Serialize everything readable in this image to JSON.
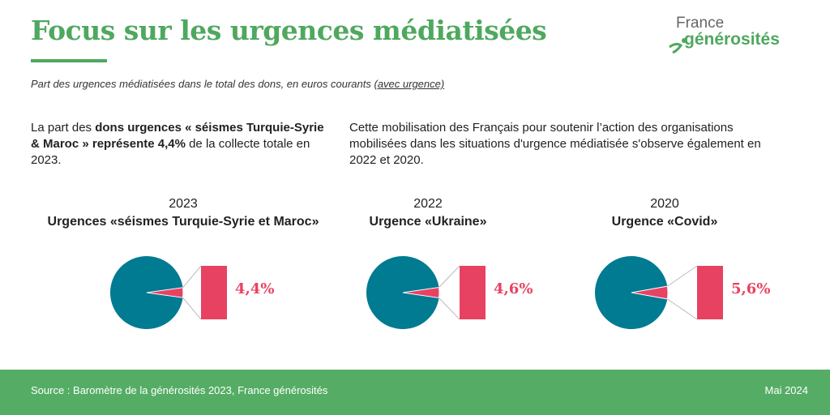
{
  "title": "Focus sur les urgences médiatisées",
  "logo": {
    "line1": "France",
    "line2": "générosités"
  },
  "subtitle": {
    "text": "Part des urgences médiatisées dans le total des dons, en euros courants ",
    "link": "(avec urgence)"
  },
  "para1": {
    "a": "La part des ",
    "b": "dons urgences « séismes Turquie-Syrie & Maroc » représente 4,4%",
    "c": " de la collecte totale en 2023."
  },
  "para2": "Cette mobilisation des Français pour soutenir l’action des organisations mobilisées dans les situations d'urgence médiatisée s'observe également en 2022 et 2020.",
  "colors": {
    "pie_main": "#007b92",
    "pie_slice": "#e84262",
    "title_green": "#4fa85f",
    "footer": "#55ad65"
  },
  "chart_data": [
    {
      "type": "pie",
      "title": "2023",
      "subtitle": "Urgences «séismes Turquie-Syrie et Maroc»",
      "values": [
        95.6,
        4.4
      ],
      "label": "4,4%"
    },
    {
      "type": "pie",
      "title": "2022",
      "subtitle": "Urgence «Ukraine»",
      "values": [
        95.4,
        4.6
      ],
      "label": "4,6%"
    },
    {
      "type": "pie",
      "title": "2020",
      "subtitle": "Urgence «Covid»",
      "values": [
        94.4,
        5.6
      ],
      "label": "5,6%"
    }
  ],
  "footer": {
    "source": "Source : Baromètre de la générosités 2023, France générosités",
    "date": "Mai 2024"
  }
}
